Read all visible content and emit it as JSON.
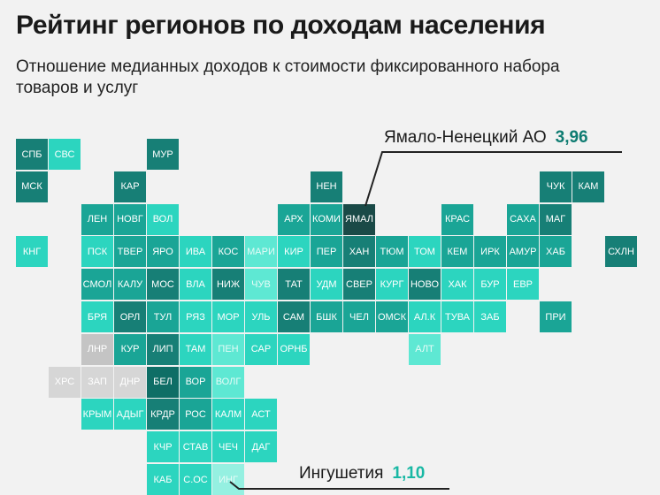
{
  "header": {
    "title": "Рейтинг регионов по доходам населения",
    "subtitle": "Отношение медианных доходов к стоимости фиксированного набора товаров и услуг"
  },
  "colors": {
    "darkest": "#0f6e66",
    "dark": "#177f76",
    "mid": "#1aa596",
    "light": "#2cd5bf",
    "lighter": "#5ee8d3",
    "palest": "#95f0e1",
    "gray_dark": "#c4c4c4",
    "gray": "#d6d6d6",
    "highlight": "#1a4a47"
  },
  "chart_data": {
    "type": "tile-map",
    "title": "Рейтинг регионов по доходам населения",
    "subtitle": "Отношение медианных доходов к стоимости фиксированного набора товаров и услуг",
    "callouts": [
      {
        "region": "Ямало-Ненецкий АО",
        "value": "3,96",
        "tile": "ЯМАЛ"
      },
      {
        "region": "Ингушетия",
        "value": "1,10",
        "tile": "ИНГ"
      }
    ],
    "tiles": [
      {
        "label": "СПБ",
        "col": 0,
        "row": 0,
        "tone": "dark"
      },
      {
        "label": "СВС",
        "col": 1,
        "row": 0,
        "tone": "light"
      },
      {
        "label": "МУР",
        "col": 4,
        "row": 0,
        "tone": "dark"
      },
      {
        "label": "МСК",
        "col": 0,
        "row": 1,
        "tone": "dark"
      },
      {
        "label": "КАР",
        "col": 3,
        "row": 1,
        "tone": "dark"
      },
      {
        "label": "НЕН",
        "col": 9,
        "row": 1,
        "tone": "dark"
      },
      {
        "label": "ЧУК",
        "col": 16,
        "row": 1,
        "tone": "dark"
      },
      {
        "label": "КАМ",
        "col": 17,
        "row": 1,
        "tone": "dark"
      },
      {
        "label": "ЛЕН",
        "col": 2,
        "row": 2,
        "tone": "mid"
      },
      {
        "label": "НОВГ",
        "col": 3,
        "row": 2,
        "tone": "mid"
      },
      {
        "label": "ВОЛ",
        "col": 4,
        "row": 2,
        "tone": "light"
      },
      {
        "label": "АРХ",
        "col": 8,
        "row": 2,
        "tone": "mid"
      },
      {
        "label": "КОМИ",
        "col": 9,
        "row": 2,
        "tone": "mid"
      },
      {
        "label": "ЯМАЛ",
        "col": 10,
        "row": 2,
        "tone": "highlight"
      },
      {
        "label": "КРАС",
        "col": 13,
        "row": 2,
        "tone": "mid"
      },
      {
        "label": "САХА",
        "col": 15,
        "row": 2,
        "tone": "mid"
      },
      {
        "label": "МАГ",
        "col": 16,
        "row": 2,
        "tone": "dark"
      },
      {
        "label": "КНГ",
        "col": 0,
        "row": 3,
        "tone": "light"
      },
      {
        "label": "ПСК",
        "col": 2,
        "row": 3,
        "tone": "light"
      },
      {
        "label": "ТВЕР",
        "col": 3,
        "row": 3,
        "tone": "mid"
      },
      {
        "label": "ЯРО",
        "col": 4,
        "row": 3,
        "tone": "mid"
      },
      {
        "label": "ИВА",
        "col": 5,
        "row": 3,
        "tone": "light"
      },
      {
        "label": "КОС",
        "col": 6,
        "row": 3,
        "tone": "mid"
      },
      {
        "label": "МАРИ",
        "col": 7,
        "row": 3,
        "tone": "lighter"
      },
      {
        "label": "КИР",
        "col": 8,
        "row": 3,
        "tone": "light"
      },
      {
        "label": "ПЕР",
        "col": 9,
        "row": 3,
        "tone": "mid"
      },
      {
        "label": "ХАН",
        "col": 10,
        "row": 3,
        "tone": "dark"
      },
      {
        "label": "ТЮМ",
        "col": 11,
        "row": 3,
        "tone": "mid"
      },
      {
        "label": "ТОМ",
        "col": 12,
        "row": 3,
        "tone": "light"
      },
      {
        "label": "КЕМ",
        "col": 13,
        "row": 3,
        "tone": "mid"
      },
      {
        "label": "ИРК",
        "col": 14,
        "row": 3,
        "tone": "mid"
      },
      {
        "label": "АМУР",
        "col": 15,
        "row": 3,
        "tone": "mid"
      },
      {
        "label": "ХАБ",
        "col": 16,
        "row": 3,
        "tone": "mid"
      },
      {
        "label": "СХЛН",
        "col": 18,
        "row": 3,
        "tone": "dark"
      },
      {
        "label": "СМОЛ",
        "col": 2,
        "row": 4,
        "tone": "mid"
      },
      {
        "label": "КАЛУ",
        "col": 3,
        "row": 4,
        "tone": "mid"
      },
      {
        "label": "МОС",
        "col": 4,
        "row": 4,
        "tone": "dark"
      },
      {
        "label": "ВЛА",
        "col": 5,
        "row": 4,
        "tone": "light"
      },
      {
        "label": "НИЖ",
        "col": 6,
        "row": 4,
        "tone": "dark"
      },
      {
        "label": "ЧУВ",
        "col": 7,
        "row": 4,
        "tone": "lighter"
      },
      {
        "label": "ТАТ",
        "col": 8,
        "row": 4,
        "tone": "dark"
      },
      {
        "label": "УДМ",
        "col": 9,
        "row": 4,
        "tone": "light"
      },
      {
        "label": "СВЕР",
        "col": 10,
        "row": 4,
        "tone": "dark"
      },
      {
        "label": "КУРГ",
        "col": 11,
        "row": 4,
        "tone": "light"
      },
      {
        "label": "НОВО",
        "col": 12,
        "row": 4,
        "tone": "dark"
      },
      {
        "label": "ХАК",
        "col": 13,
        "row": 4,
        "tone": "light"
      },
      {
        "label": "БУР",
        "col": 14,
        "row": 4,
        "tone": "light"
      },
      {
        "label": "ЕВР",
        "col": 15,
        "row": 4,
        "tone": "light"
      },
      {
        "label": "БРЯ",
        "col": 2,
        "row": 5,
        "tone": "light"
      },
      {
        "label": "ОРЛ",
        "col": 3,
        "row": 5,
        "tone": "dark"
      },
      {
        "label": "ТУЛ",
        "col": 4,
        "row": 5,
        "tone": "mid"
      },
      {
        "label": "РЯЗ",
        "col": 5,
        "row": 5,
        "tone": "light"
      },
      {
        "label": "МОР",
        "col": 6,
        "row": 5,
        "tone": "light"
      },
      {
        "label": "УЛЬ",
        "col": 7,
        "row": 5,
        "tone": "light"
      },
      {
        "label": "САМ",
        "col": 8,
        "row": 5,
        "tone": "dark"
      },
      {
        "label": "БШК",
        "col": 9,
        "row": 5,
        "tone": "mid"
      },
      {
        "label": "ЧЕЛ",
        "col": 10,
        "row": 5,
        "tone": "mid"
      },
      {
        "label": "ОМСК",
        "col": 11,
        "row": 5,
        "tone": "mid"
      },
      {
        "label": "АЛ.К",
        "col": 12,
        "row": 5,
        "tone": "light"
      },
      {
        "label": "ТУВА",
        "col": 13,
        "row": 5,
        "tone": "light"
      },
      {
        "label": "ЗАБ",
        "col": 14,
        "row": 5,
        "tone": "light"
      },
      {
        "label": "ПРИ",
        "col": 16,
        "row": 5,
        "tone": "mid"
      },
      {
        "label": "ЛНР",
        "col": 2,
        "row": 6,
        "tone": "gray_dark"
      },
      {
        "label": "КУР",
        "col": 3,
        "row": 6,
        "tone": "mid"
      },
      {
        "label": "ЛИП",
        "col": 4,
        "row": 6,
        "tone": "dark"
      },
      {
        "label": "ТАМ",
        "col": 5,
        "row": 6,
        "tone": "light"
      },
      {
        "label": "ПЕН",
        "col": 6,
        "row": 6,
        "tone": "lighter"
      },
      {
        "label": "САР",
        "col": 7,
        "row": 6,
        "tone": "light"
      },
      {
        "label": "ОРНБ",
        "col": 8,
        "row": 6,
        "tone": "light"
      },
      {
        "label": "АЛТ",
        "col": 12,
        "row": 6,
        "tone": "lighter"
      },
      {
        "label": "ХРС",
        "col": 1,
        "row": 7,
        "tone": "gray"
      },
      {
        "label": "ЗАП",
        "col": 2,
        "row": 7,
        "tone": "gray"
      },
      {
        "label": "ДНР",
        "col": 3,
        "row": 7,
        "tone": "gray"
      },
      {
        "label": "БЕЛ",
        "col": 4,
        "row": 7,
        "tone": "darkest"
      },
      {
        "label": "ВОР",
        "col": 5,
        "row": 7,
        "tone": "mid"
      },
      {
        "label": "ВОЛГ",
        "col": 6,
        "row": 7,
        "tone": "lighter"
      },
      {
        "label": "КРЫМ",
        "col": 2,
        "row": 8,
        "tone": "light"
      },
      {
        "label": "АДЫГ",
        "col": 3,
        "row": 8,
        "tone": "light"
      },
      {
        "label": "КРДР",
        "col": 4,
        "row": 8,
        "tone": "dark"
      },
      {
        "label": "РОС",
        "col": 5,
        "row": 8,
        "tone": "mid"
      },
      {
        "label": "КАЛМ",
        "col": 6,
        "row": 8,
        "tone": "light"
      },
      {
        "label": "АСТ",
        "col": 7,
        "row": 8,
        "tone": "light"
      },
      {
        "label": "КЧР",
        "col": 4,
        "row": 9,
        "tone": "light"
      },
      {
        "label": "СТАВ",
        "col": 5,
        "row": 9,
        "tone": "light"
      },
      {
        "label": "ЧЕЧ",
        "col": 6,
        "row": 9,
        "tone": "light"
      },
      {
        "label": "ДАГ",
        "col": 7,
        "row": 9,
        "tone": "light"
      },
      {
        "label": "КАБ",
        "col": 4,
        "row": 10,
        "tone": "light"
      },
      {
        "label": "С.ОС",
        "col": 5,
        "row": 10,
        "tone": "light"
      },
      {
        "label": "ИНГ",
        "col": 6,
        "row": 10,
        "tone": "palest"
      }
    ]
  }
}
